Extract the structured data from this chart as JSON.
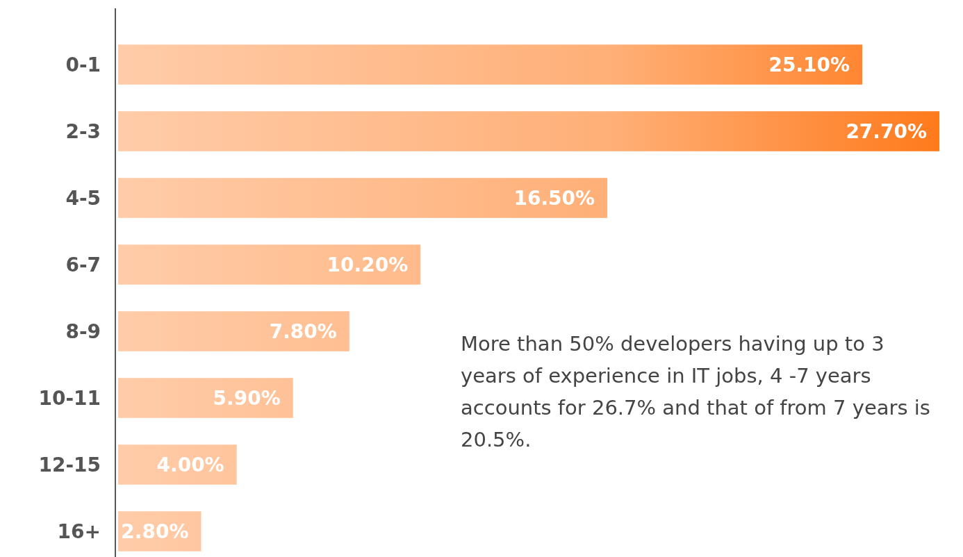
{
  "chart_data": {
    "type": "bar",
    "orientation": "horizontal",
    "categories": [
      "0-1",
      "2-3",
      "4-5",
      "6-7",
      "8-9",
      "10-11",
      "12-15",
      "16+"
    ],
    "values": [
      25.1,
      27.7,
      16.5,
      10.2,
      7.8,
      5.9,
      4.0,
      2.8
    ],
    "value_labels": [
      "25.10%",
      "27.70%",
      "16.50%",
      "10.20%",
      "7.80%",
      "5.90%",
      "4.00%",
      "2.80%"
    ],
    "color": "#ff7a1c",
    "xlim": [
      0,
      27.7
    ],
    "annotations": [
      "More than 50% developers having up to 3 years of experience in IT jobs, 4 -7 years accounts for 26.7% and that of from 7 years is 20.5%."
    ]
  }
}
